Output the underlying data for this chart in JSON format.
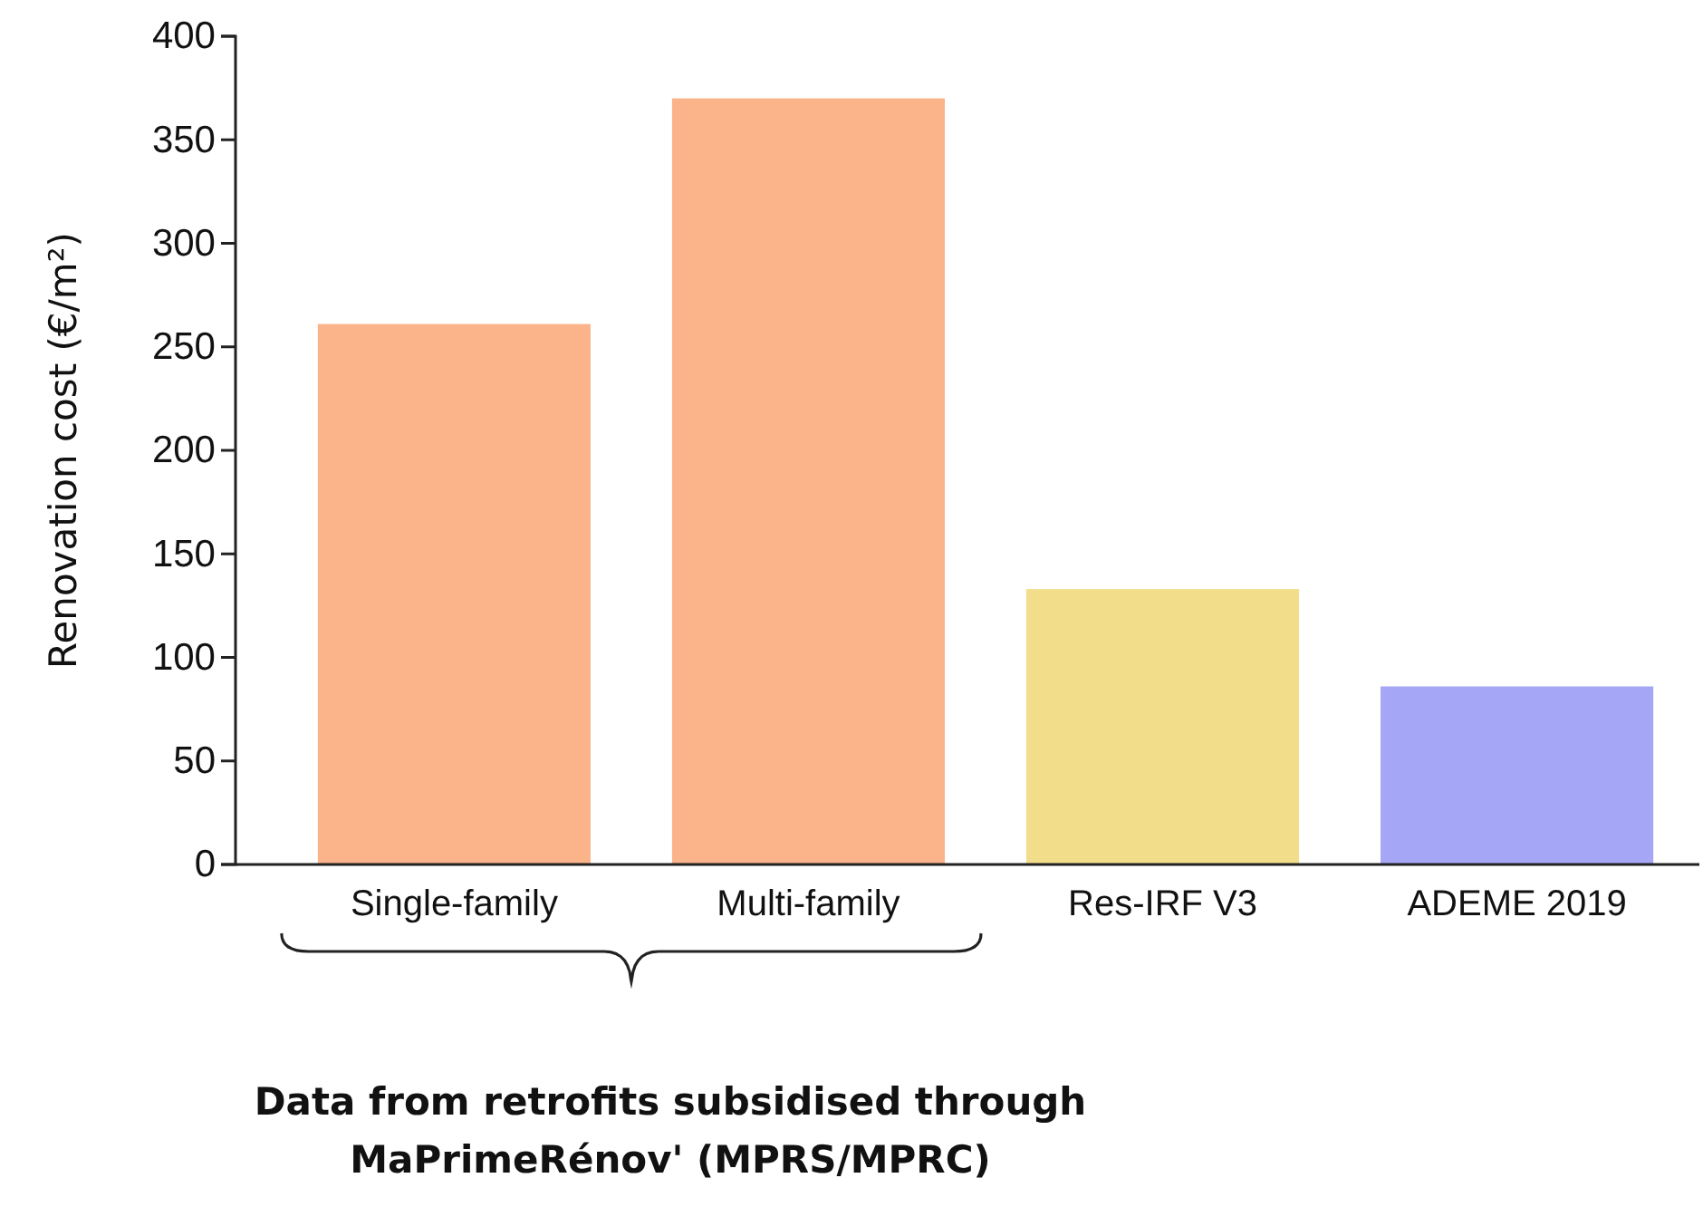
{
  "chart_data": {
    "type": "bar",
    "ylabel": "Renovation cost  (€/m²)",
    "categories": [
      "Single-family",
      "Multi-family",
      "Res-IRF V3",
      "ADEME 2019"
    ],
    "values": [
      261,
      370,
      133,
      86
    ],
    "colors": [
      "#fbb38a",
      "#fbb38a",
      "#f2dd8a",
      "#a5a6f5"
    ],
    "ylim": [
      0,
      400
    ],
    "yticks": [
      0,
      50,
      100,
      150,
      200,
      250,
      300,
      350,
      400
    ],
    "grid": false,
    "annotations": [
      "Data from retrofits subsidised through MaPrimeRénov' (MPRS/MPRC)"
    ]
  }
}
